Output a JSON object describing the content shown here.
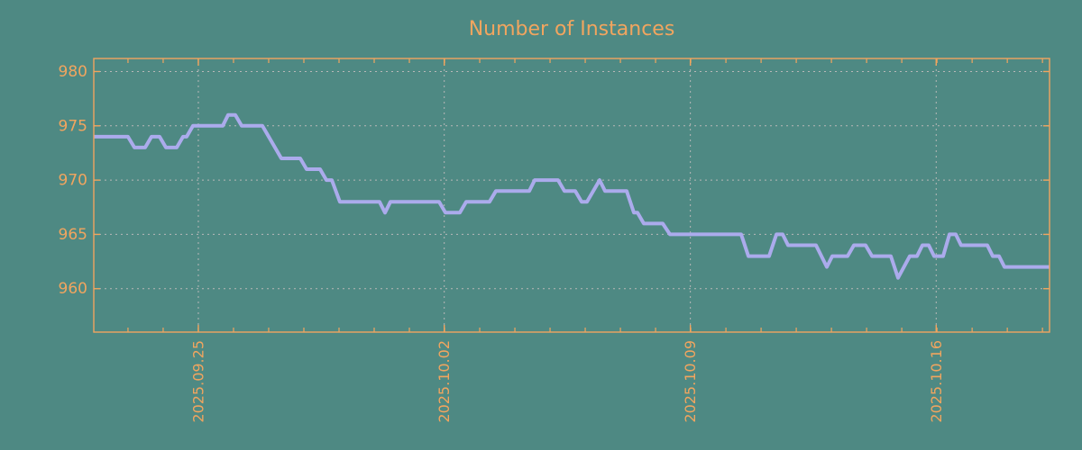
{
  "title": "Number of Instances",
  "colors": {
    "background": "#4E8983",
    "axis_orange": "#F1A55F",
    "grid_gray": "#B8B8B8",
    "line_purple": "#ABABEC"
  },
  "chart_data": {
    "type": "line",
    "title": "Number of Instances",
    "xlabel": "",
    "ylabel": "",
    "legend": false,
    "grid": true,
    "ylim": [
      956.0,
      981.2
    ],
    "y_ticks": [
      960,
      965,
      970,
      975,
      980
    ],
    "x_ticks": [
      {
        "label": "2025.09.25",
        "t": 0.1094
      },
      {
        "label": "2025.10.02",
        "t": 0.3667
      },
      {
        "label": "2025.10.09",
        "t": 0.6242
      },
      {
        "label": "2025.10.16",
        "t": 0.8814
      }
    ],
    "x_minor_tick_start": 0.0358,
    "x_minor_tick_step": 0.0368,
    "series_name": "instances",
    "points": [
      [
        0.0,
        974
      ],
      [
        0.0358,
        974
      ],
      [
        0.0425,
        973
      ],
      [
        0.0538,
        973
      ],
      [
        0.0604,
        974
      ],
      [
        0.0689,
        974
      ],
      [
        0.0755,
        973
      ],
      [
        0.0868,
        973
      ],
      [
        0.0934,
        974
      ],
      [
        0.0972,
        974
      ],
      [
        0.1038,
        975
      ],
      [
        0.1349,
        975
      ],
      [
        0.1406,
        976
      ],
      [
        0.1481,
        976
      ],
      [
        0.1547,
        975
      ],
      [
        0.1764,
        975
      ],
      [
        0.1962,
        972
      ],
      [
        0.216,
        972
      ],
      [
        0.2226,
        971
      ],
      [
        0.2368,
        971
      ],
      [
        0.2434,
        970
      ],
      [
        0.2491,
        970
      ],
      [
        0.2575,
        968
      ],
      [
        0.299,
        968
      ],
      [
        0.3047,
        967
      ],
      [
        0.3104,
        968
      ],
      [
        0.3613,
        968
      ],
      [
        0.3679,
        967
      ],
      [
        0.383,
        967
      ],
      [
        0.3896,
        968
      ],
      [
        0.4141,
        968
      ],
      [
        0.4208,
        969
      ],
      [
        0.4557,
        969
      ],
      [
        0.4613,
        970
      ],
      [
        0.4858,
        970
      ],
      [
        0.4925,
        969
      ],
      [
        0.5038,
        969
      ],
      [
        0.5104,
        968
      ],
      [
        0.516,
        968
      ],
      [
        0.5292,
        970
      ],
      [
        0.5349,
        969
      ],
      [
        0.5575,
        969
      ],
      [
        0.5651,
        967
      ],
      [
        0.5689,
        967
      ],
      [
        0.5755,
        966
      ],
      [
        0.5953,
        966
      ],
      [
        0.6028,
        965
      ],
      [
        0.6774,
        965
      ],
      [
        0.6849,
        963
      ],
      [
        0.7066,
        963
      ],
      [
        0.7142,
        965
      ],
      [
        0.7208,
        965
      ],
      [
        0.7264,
        964
      ],
      [
        0.7557,
        964
      ],
      [
        0.767,
        962
      ],
      [
        0.7726,
        963
      ],
      [
        0.7887,
        963
      ],
      [
        0.7953,
        964
      ],
      [
        0.8075,
        964
      ],
      [
        0.8142,
        963
      ],
      [
        0.834,
        963
      ],
      [
        0.8415,
        961
      ],
      [
        0.8538,
        963
      ],
      [
        0.8613,
        963
      ],
      [
        0.867,
        964
      ],
      [
        0.8736,
        964
      ],
      [
        0.8792,
        963
      ],
      [
        0.8887,
        963
      ],
      [
        0.8953,
        965
      ],
      [
        0.9019,
        965
      ],
      [
        0.9075,
        964
      ],
      [
        0.9349,
        964
      ],
      [
        0.9406,
        963
      ],
      [
        0.9472,
        963
      ],
      [
        0.9528,
        962
      ],
      [
        1.0,
        962
      ]
    ]
  }
}
